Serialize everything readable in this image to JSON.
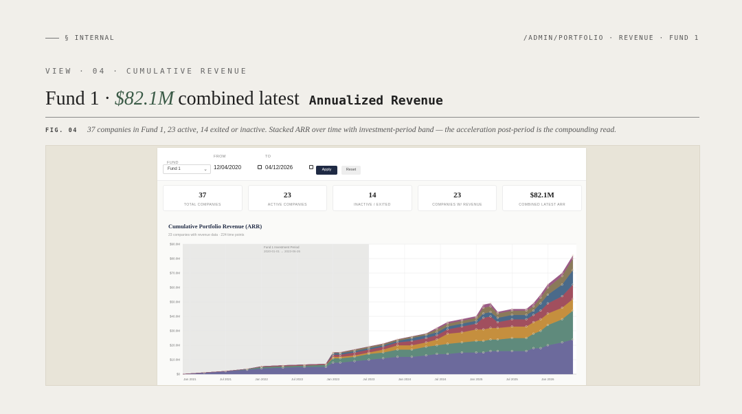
{
  "header": {
    "section": "§ INTERNAL",
    "path": "/ADMIN/PORTFOLIO · REVENUE · FUND 1"
  },
  "view_label": "VIEW · 04 · CUMULATIVE REVENUE",
  "headline": {
    "fund": "Fund 1 ·",
    "value": "$82.1M",
    "rest": "combined latest",
    "metric": "Annualized Revenue"
  },
  "caption": {
    "fig": "FIG. 04",
    "text": "37 companies in Fund 1, 23 active, 14 exited or inactive. Stacked ARR over time with investment-period band — the acceleration post-period is the compounding read."
  },
  "filters": {
    "fund_label": "FUND",
    "fund_value": "Fund 1",
    "from_label": "FROM",
    "from_value": "12/04/2020",
    "to_label": "TO",
    "to_value": "04/12/2026",
    "apply_label": "Apply",
    "reset_label": "Reset"
  },
  "stats": [
    {
      "value": "37",
      "label": "TOTAL COMPANIES"
    },
    {
      "value": "23",
      "label": "ACTIVE COMPANIES"
    },
    {
      "value": "14",
      "label": "INACTIVE / EXITED"
    },
    {
      "value": "23",
      "label": "COMPANIES W/ REVENUE"
    },
    {
      "value": "$82.1M",
      "label": "COMBINED LATEST ARR"
    }
  ],
  "chart_data": {
    "type": "area",
    "title": "Cumulative Portfolio Revenue (ARR)",
    "subtitle": "23 companies with revenue data · 224 time points",
    "band_label": "Fund 1 Investment Period",
    "band_range_label": "2020-01-01 → 2023-06-26",
    "band_range": [
      2020.9,
      2023.5
    ],
    "y_ticks": [
      "$0",
      "$10.0M",
      "$20.0M",
      "$30.0M",
      "$40.0M",
      "$50.0M",
      "$60.0M",
      "$70.0M",
      "$80.0M",
      "$90.0M"
    ],
    "ylim": [
      0,
      90
    ],
    "x_ticks": [
      "Jan 2021",
      "Jul 2021",
      "Jan 2022",
      "Jul 2022",
      "Jan 2023",
      "Jul 2023",
      "Jan 2024",
      "Jul 2024",
      "Jan 2025",
      "Jul 2025",
      "Jan 2026"
    ],
    "xlim": [
      2020.9,
      2026.4
    ],
    "x": [
      2020.9,
      2021.2,
      2021.5,
      2021.8,
      2022.0,
      2022.3,
      2022.6,
      2022.9,
      2023.0,
      2023.1,
      2023.3,
      2023.5,
      2023.7,
      2023.9,
      2024.1,
      2024.3,
      2024.45,
      2024.6,
      2024.8,
      2025.0,
      2025.1,
      2025.2,
      2025.3,
      2025.5,
      2025.7,
      2025.8,
      2025.9,
      2026.0,
      2026.2,
      2026.35
    ],
    "series": [
      {
        "color": "#6c6a9c",
        "values": [
          0,
          1,
          2,
          3,
          4,
          4.5,
          5,
          5,
          8,
          8,
          9,
          10,
          11,
          12,
          12,
          13,
          14,
          14,
          15,
          15,
          15,
          16,
          16,
          16,
          16,
          18,
          18,
          20,
          22,
          24
        ]
      },
      {
        "color": "#5f8a7c",
        "values": [
          0,
          0,
          0,
          0.5,
          1,
          1,
          1,
          1.5,
          3,
          3,
          3,
          4,
          4,
          5,
          5,
          6,
          6,
          7,
          7,
          8,
          8,
          8,
          8,
          9,
          9,
          10,
          12,
          14,
          16,
          20
        ]
      },
      {
        "color": "#c58f3e",
        "values": [
          0,
          0,
          0,
          0,
          0,
          0,
          0,
          0,
          1,
          1,
          1,
          1,
          2,
          3,
          3,
          3,
          4,
          7,
          7,
          8,
          8,
          8,
          8,
          8,
          8,
          8,
          8,
          8,
          8,
          8
        ]
      },
      {
        "color": "#a14f5e",
        "values": [
          0,
          0,
          0,
          0,
          0.3,
          0.5,
          0.5,
          0.5,
          1.5,
          1.5,
          2,
          2,
          2,
          2,
          3,
          3,
          3,
          3,
          4,
          4,
          8,
          8,
          4,
          5,
          5,
          5,
          6,
          7,
          8,
          10
        ]
      },
      {
        "color": "#4a6a8a",
        "values": [
          0,
          0,
          0,
          0,
          0,
          0,
          0,
          0,
          1,
          1,
          1,
          1,
          1,
          1,
          2,
          2,
          2,
          2,
          2,
          2,
          3,
          3,
          3,
          3,
          3,
          3,
          5,
          6,
          8,
          10
        ]
      },
      {
        "color": "#8a7a5a",
        "values": [
          0,
          0,
          0,
          0,
          0,
          0,
          0,
          0,
          0.5,
          0.5,
          1,
          1,
          1,
          1,
          1,
          1,
          2,
          2,
          2,
          2,
          4,
          4,
          3,
          3,
          3,
          3,
          4,
          5,
          6,
          8
        ]
      },
      {
        "color": "#9b5a86",
        "values": [
          0,
          0,
          0,
          0,
          0,
          0,
          0,
          0,
          0,
          0,
          0,
          0,
          0,
          0,
          0,
          0,
          1,
          1,
          1,
          1,
          2,
          2,
          1,
          1,
          1,
          2,
          2,
          2,
          2,
          2
        ]
      }
    ]
  }
}
